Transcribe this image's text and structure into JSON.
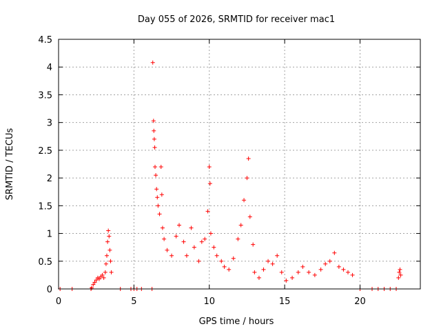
{
  "chart_data": {
    "type": "scatter",
    "title": "Day 055 of 2026, SRMTID for receiver mac1",
    "xlabel": "GPS time / hours",
    "ylabel": "SRMTID / TECUs",
    "xlim": [
      0,
      24
    ],
    "ylim": [
      0,
      4.5
    ],
    "xticks": [
      0,
      5,
      10,
      15,
      20
    ],
    "yticks": [
      0,
      0.5,
      1,
      1.5,
      2,
      2.5,
      3,
      3.5,
      4,
      4.5
    ],
    "xtick_labels": [
      "0",
      "5",
      "10",
      "15",
      "20"
    ],
    "ytick_labels": [
      "0",
      "0.5",
      "1",
      "1.5",
      "2",
      "2.5",
      "3",
      "3.5",
      "4",
      "4.5"
    ],
    "grid": true,
    "marker": "+",
    "color": "#ff0000",
    "series": [
      {
        "points": [
          [
            0.1,
            0.0
          ],
          [
            0.9,
            0.0
          ],
          [
            2.15,
            0.0
          ],
          [
            2.2,
            0.02
          ],
          [
            2.3,
            0.08
          ],
          [
            2.4,
            0.12
          ],
          [
            2.5,
            0.16
          ],
          [
            2.6,
            0.2
          ],
          [
            2.7,
            0.18
          ],
          [
            2.8,
            0.22
          ],
          [
            2.9,
            0.25
          ],
          [
            3.0,
            0.2
          ],
          [
            3.1,
            0.3
          ],
          [
            3.15,
            0.45
          ],
          [
            3.2,
            0.6
          ],
          [
            3.25,
            0.85
          ],
          [
            3.3,
            1.05
          ],
          [
            3.35,
            0.95
          ],
          [
            3.4,
            0.7
          ],
          [
            3.45,
            0.5
          ],
          [
            3.5,
            0.3
          ],
          [
            4.1,
            0.0
          ],
          [
            4.8,
            0.0
          ],
          [
            5.0,
            0.0
          ],
          [
            5.2,
            0.0
          ],
          [
            5.5,
            0.0
          ],
          [
            6.2,
            0.0
          ],
          [
            6.25,
            4.08
          ],
          [
            6.3,
            3.03
          ],
          [
            6.32,
            2.85
          ],
          [
            6.35,
            2.7
          ],
          [
            6.38,
            2.55
          ],
          [
            6.4,
            2.2
          ],
          [
            6.45,
            2.05
          ],
          [
            6.5,
            1.8
          ],
          [
            6.55,
            1.65
          ],
          [
            6.6,
            1.5
          ],
          [
            6.7,
            1.35
          ],
          [
            6.8,
            2.2
          ],
          [
            6.85,
            1.7
          ],
          [
            6.9,
            1.1
          ],
          [
            7.0,
            0.9
          ],
          [
            7.2,
            0.7
          ],
          [
            7.5,
            0.6
          ],
          [
            7.8,
            0.95
          ],
          [
            8.0,
            1.15
          ],
          [
            8.3,
            0.85
          ],
          [
            8.5,
            0.6
          ],
          [
            8.8,
            1.1
          ],
          [
            9.0,
            0.75
          ],
          [
            9.3,
            0.5
          ],
          [
            9.5,
            0.85
          ],
          [
            9.7,
            0.9
          ],
          [
            9.9,
            1.4
          ],
          [
            10.0,
            2.2
          ],
          [
            10.05,
            1.9
          ],
          [
            10.1,
            1.0
          ],
          [
            10.3,
            0.75
          ],
          [
            10.5,
            0.6
          ],
          [
            10.8,
            0.5
          ],
          [
            11.0,
            0.4
          ],
          [
            11.3,
            0.35
          ],
          [
            11.6,
            0.55
          ],
          [
            11.9,
            0.9
          ],
          [
            12.1,
            1.15
          ],
          [
            12.3,
            1.6
          ],
          [
            12.5,
            2.0
          ],
          [
            12.6,
            2.35
          ],
          [
            12.7,
            1.3
          ],
          [
            12.9,
            0.8
          ],
          [
            13.0,
            0.3
          ],
          [
            13.3,
            0.2
          ],
          [
            13.6,
            0.35
          ],
          [
            13.9,
            0.5
          ],
          [
            14.2,
            0.45
          ],
          [
            14.5,
            0.6
          ],
          [
            14.8,
            0.3
          ],
          [
            15.1,
            0.15
          ],
          [
            15.5,
            0.2
          ],
          [
            15.9,
            0.3
          ],
          [
            16.2,
            0.4
          ],
          [
            16.6,
            0.3
          ],
          [
            17.0,
            0.25
          ],
          [
            17.4,
            0.35
          ],
          [
            17.7,
            0.45
          ],
          [
            18.0,
            0.5
          ],
          [
            18.3,
            0.65
          ],
          [
            18.6,
            0.4
          ],
          [
            18.9,
            0.35
          ],
          [
            19.2,
            0.3
          ],
          [
            19.5,
            0.25
          ],
          [
            20.0,
            0.0
          ],
          [
            20.8,
            0.0
          ],
          [
            21.2,
            0.0
          ],
          [
            21.6,
            0.0
          ],
          [
            22.0,
            0.0
          ],
          [
            22.4,
            0.0
          ],
          [
            22.55,
            0.2
          ],
          [
            22.6,
            0.3
          ],
          [
            22.65,
            0.35
          ],
          [
            22.7,
            0.25
          ]
        ]
      }
    ]
  }
}
